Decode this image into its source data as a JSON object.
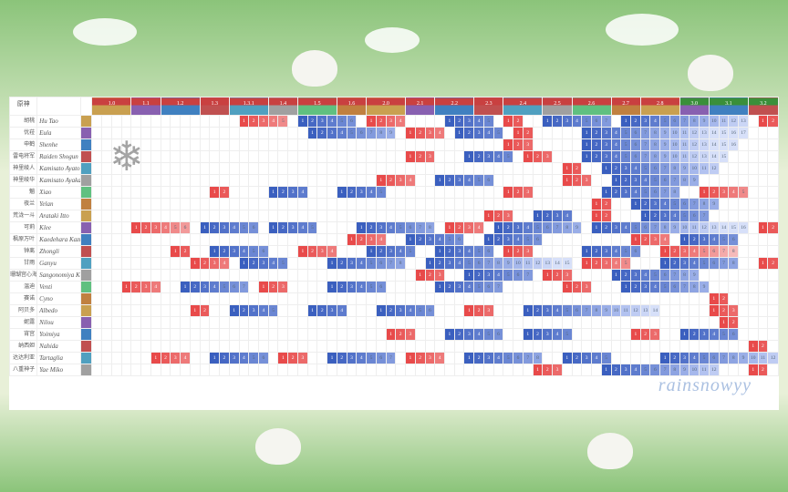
{
  "watermark": "rainsnowyy",
  "colors": {
    "red_scale": [
      "#e84a4a",
      "#ea5a5a",
      "#ec6a6a",
      "#ee7a7a",
      "#f08a8a",
      "#f29a9a",
      "#f4aaaa",
      "#f6baba",
      "#f8caca",
      "#fadada",
      "#fce4e4",
      "#fdeaea",
      "#feefef",
      "#fef4f4"
    ],
    "blue_scale": [
      "#3a5fbf",
      "#4668c4",
      "#5272c9",
      "#5e7cce",
      "#6a86d3",
      "#7690d8",
      "#829add",
      "#8ea4e2",
      "#9aaee7",
      "#a6b8ec",
      "#b2c2f0",
      "#bfccf3",
      "#cbd6f6",
      "#d7e0f9"
    ],
    "version_label_bg": "#c94040",
    "version_label_bg_alt": "#3a8f3a",
    "portrait_bg": [
      "#c9a050",
      "#8860b0",
      "#4080c0",
      "#c05050",
      "#50a0c0",
      "#a0a0a0",
      "#60c080",
      "#c08040"
    ]
  },
  "versions": [
    "1.0",
    "1.1",
    "1.2",
    "1.3",
    "1.3.1",
    "1.4",
    "1.5",
    "1.6",
    "2.0",
    "2.1",
    "2.2",
    "2.3",
    "2.4",
    "2.5",
    "2.6",
    "2.7",
    "2.8",
    "3.0",
    "3.1",
    "3.2"
  ],
  "rows": [
    {
      "cn": "胡桃",
      "en": "Hu Tao",
      "seq": [
        {
          "s": 15,
          "n": 5,
          "c": "r"
        },
        {
          "s": 21,
          "n": 6,
          "c": "b"
        },
        {
          "s": 28,
          "n": 4,
          "c": "r"
        },
        {
          "s": 36,
          "n": 5,
          "c": "b"
        },
        {
          "s": 42,
          "n": 2,
          "c": "r"
        },
        {
          "s": 46,
          "n": 7,
          "c": "b"
        },
        {
          "s": 54,
          "n": 13,
          "c": "b"
        },
        {
          "s": 68,
          "n": 3,
          "c": "r"
        }
      ]
    },
    {
      "cn": "优菈",
      "en": "Eula",
      "seq": [
        {
          "s": 22,
          "n": 9,
          "c": "b"
        },
        {
          "s": 32,
          "n": 4,
          "c": "r"
        },
        {
          "s": 37,
          "n": 5,
          "c": "b"
        },
        {
          "s": 43,
          "n": 2,
          "c": "r"
        },
        {
          "s": 50,
          "n": 17,
          "c": "b"
        }
      ]
    },
    {
      "cn": "申鹤",
      "en": "Shenhe",
      "seq": [
        {
          "s": 42,
          "n": 3,
          "c": "r"
        },
        {
          "s": 50,
          "n": 16,
          "c": "b"
        }
      ]
    },
    {
      "cn": "雷电将军",
      "en": "Raiden Shogun",
      "seq": [
        {
          "s": 32,
          "n": 3,
          "c": "r"
        },
        {
          "s": 38,
          "n": 5,
          "c": "b"
        },
        {
          "s": 44,
          "n": 3,
          "c": "r"
        },
        {
          "s": 50,
          "n": 15,
          "c": "b"
        }
      ]
    },
    {
      "cn": "神里绫人",
      "en": "Kamisato Ayato",
      "seq": [
        {
          "s": 48,
          "n": 2,
          "c": "r"
        },
        {
          "s": 52,
          "n": 12,
          "c": "b"
        }
      ]
    },
    {
      "cn": "神里绫华",
      "en": "Kamisato Ayaka",
      "seq": [
        {
          "s": 29,
          "n": 4,
          "c": "r"
        },
        {
          "s": 35,
          "n": 6,
          "c": "b"
        },
        {
          "s": 48,
          "n": 3,
          "c": "r"
        },
        {
          "s": 53,
          "n": 9,
          "c": "b"
        }
      ]
    },
    {
      "cn": "魈",
      "en": "Xiao",
      "seq": [
        {
          "s": 12,
          "n": 2,
          "c": "r"
        },
        {
          "s": 18,
          "n": 4,
          "c": "b"
        },
        {
          "s": 25,
          "n": 5,
          "c": "b"
        },
        {
          "s": 42,
          "n": 3,
          "c": "r"
        },
        {
          "s": 52,
          "n": 8,
          "c": "b"
        },
        {
          "s": 62,
          "n": 5,
          "c": "r"
        }
      ]
    },
    {
      "cn": "夜兰",
      "en": "Yelan",
      "seq": [
        {
          "s": 51,
          "n": 2,
          "c": "r"
        },
        {
          "s": 55,
          "n": 9,
          "c": "b"
        }
      ]
    },
    {
      "cn": "荒泷一斗",
      "en": "Arataki Itto",
      "seq": [
        {
          "s": 40,
          "n": 3,
          "c": "r"
        },
        {
          "s": 45,
          "n": 4,
          "c": "b"
        },
        {
          "s": 51,
          "n": 2,
          "c": "r"
        },
        {
          "s": 56,
          "n": 7,
          "c": "b"
        }
      ]
    },
    {
      "cn": "可莉",
      "en": "Klee",
      "seq": [
        {
          "s": 4,
          "n": 6,
          "c": "r"
        },
        {
          "s": 11,
          "n": 6,
          "c": "b"
        },
        {
          "s": 18,
          "n": 5,
          "c": "b"
        },
        {
          "s": 27,
          "n": 8,
          "c": "b"
        },
        {
          "s": 36,
          "n": 4,
          "c": "r"
        },
        {
          "s": 41,
          "n": 9,
          "c": "b"
        },
        {
          "s": 51,
          "n": 16,
          "c": "b"
        },
        {
          "s": 68,
          "n": 3,
          "c": "r"
        }
      ]
    },
    {
      "cn": "枫原万叶",
      "en": "Kaedehara Kazuha",
      "seq": [
        {
          "s": 26,
          "n": 4,
          "c": "r"
        },
        {
          "s": 32,
          "n": 6,
          "c": "b"
        },
        {
          "s": 40,
          "n": 6,
          "c": "b"
        },
        {
          "s": 55,
          "n": 4,
          "c": "r"
        },
        {
          "s": 60,
          "n": 6,
          "c": "b"
        }
      ]
    },
    {
      "cn": "钟离",
      "en": "Zhongli",
      "seq": [
        {
          "s": 8,
          "n": 2,
          "c": "r"
        },
        {
          "s": 12,
          "n": 6,
          "c": "b"
        },
        {
          "s": 21,
          "n": 4,
          "c": "r"
        },
        {
          "s": 28,
          "n": 5,
          "c": "b"
        },
        {
          "s": 35,
          "n": 6,
          "c": "b"
        },
        {
          "s": 42,
          "n": 3,
          "c": "r"
        },
        {
          "s": 50,
          "n": 6,
          "c": "b"
        },
        {
          "s": 58,
          "n": 8,
          "c": "r"
        }
      ]
    },
    {
      "cn": "甘雨",
      "en": "Ganyu",
      "seq": [
        {
          "s": 10,
          "n": 4,
          "c": "r"
        },
        {
          "s": 15,
          "n": 5,
          "c": "b"
        },
        {
          "s": 24,
          "n": 8,
          "c": "b"
        },
        {
          "s": 34,
          "n": 15,
          "c": "b"
        },
        {
          "s": 50,
          "n": 5,
          "c": "r"
        },
        {
          "s": 58,
          "n": 8,
          "c": "b"
        },
        {
          "s": 68,
          "n": 3,
          "c": "r"
        }
      ]
    },
    {
      "cn": "珊瑚宫心海",
      "en": "Sangonomiya Kokomi",
      "seq": [
        {
          "s": 33,
          "n": 3,
          "c": "r"
        },
        {
          "s": 38,
          "n": 7,
          "c": "b"
        },
        {
          "s": 46,
          "n": 3,
          "c": "r"
        },
        {
          "s": 53,
          "n": 9,
          "c": "b"
        }
      ]
    },
    {
      "cn": "温迪",
      "en": "Venti",
      "seq": [
        {
          "s": 3,
          "n": 4,
          "c": "r"
        },
        {
          "s": 9,
          "n": 7,
          "c": "b"
        },
        {
          "s": 17,
          "n": 3,
          "c": "r"
        },
        {
          "s": 24,
          "n": 6,
          "c": "b"
        },
        {
          "s": 35,
          "n": 7,
          "c": "b"
        },
        {
          "s": 48,
          "n": 3,
          "c": "r"
        },
        {
          "s": 54,
          "n": 9,
          "c": "b"
        }
      ]
    },
    {
      "cn": "赛诺",
      "en": "Cyno",
      "seq": [
        {
          "s": 63,
          "n": 2,
          "c": "r"
        }
      ]
    },
    {
      "cn": "阿贝多",
      "en": "Albedo",
      "seq": [
        {
          "s": 10,
          "n": 2,
          "c": "r"
        },
        {
          "s": 14,
          "n": 5,
          "c": "b"
        },
        {
          "s": 22,
          "n": 4,
          "c": "b"
        },
        {
          "s": 29,
          "n": 6,
          "c": "b"
        },
        {
          "s": 38,
          "n": 3,
          "c": "r"
        },
        {
          "s": 44,
          "n": 14,
          "c": "b"
        },
        {
          "s": 63,
          "n": 3,
          "c": "r"
        }
      ]
    },
    {
      "cn": "妮露",
      "en": "Nilou",
      "seq": [
        {
          "s": 64,
          "n": 2,
          "c": "r"
        }
      ]
    },
    {
      "cn": "宵宫",
      "en": "Yoimiya",
      "seq": [
        {
          "s": 30,
          "n": 3,
          "c": "r"
        },
        {
          "s": 36,
          "n": 6,
          "c": "b"
        },
        {
          "s": 44,
          "n": 5,
          "c": "b"
        },
        {
          "s": 55,
          "n": 3,
          "c": "r"
        },
        {
          "s": 60,
          "n": 6,
          "c": "b"
        }
      ]
    },
    {
      "cn": "纳西妲",
      "en": "Nahida",
      "seq": [
        {
          "s": 67,
          "n": 2,
          "c": "r"
        }
      ]
    },
    {
      "cn": "达达利亚",
      "en": "Tartaglia",
      "seq": [
        {
          "s": 6,
          "n": 4,
          "c": "r"
        },
        {
          "s": 12,
          "n": 6,
          "c": "b"
        },
        {
          "s": 19,
          "n": 3,
          "c": "r"
        },
        {
          "s": 24,
          "n": 7,
          "c": "b"
        },
        {
          "s": 32,
          "n": 4,
          "c": "r"
        },
        {
          "s": 38,
          "n": 8,
          "c": "b"
        },
        {
          "s": 48,
          "n": 5,
          "c": "b"
        },
        {
          "s": 58,
          "n": 12,
          "c": "b"
        }
      ]
    },
    {
      "cn": "八重神子",
      "en": "Yae Miko",
      "seq": [
        {
          "s": 45,
          "n": 3,
          "c": "r"
        },
        {
          "s": 52,
          "n": 12,
          "c": "b"
        },
        {
          "s": 67,
          "n": 2,
          "c": "r"
        }
      ]
    }
  ],
  "cells_per_version": 3.5,
  "total_cols": 70,
  "title": "原神"
}
